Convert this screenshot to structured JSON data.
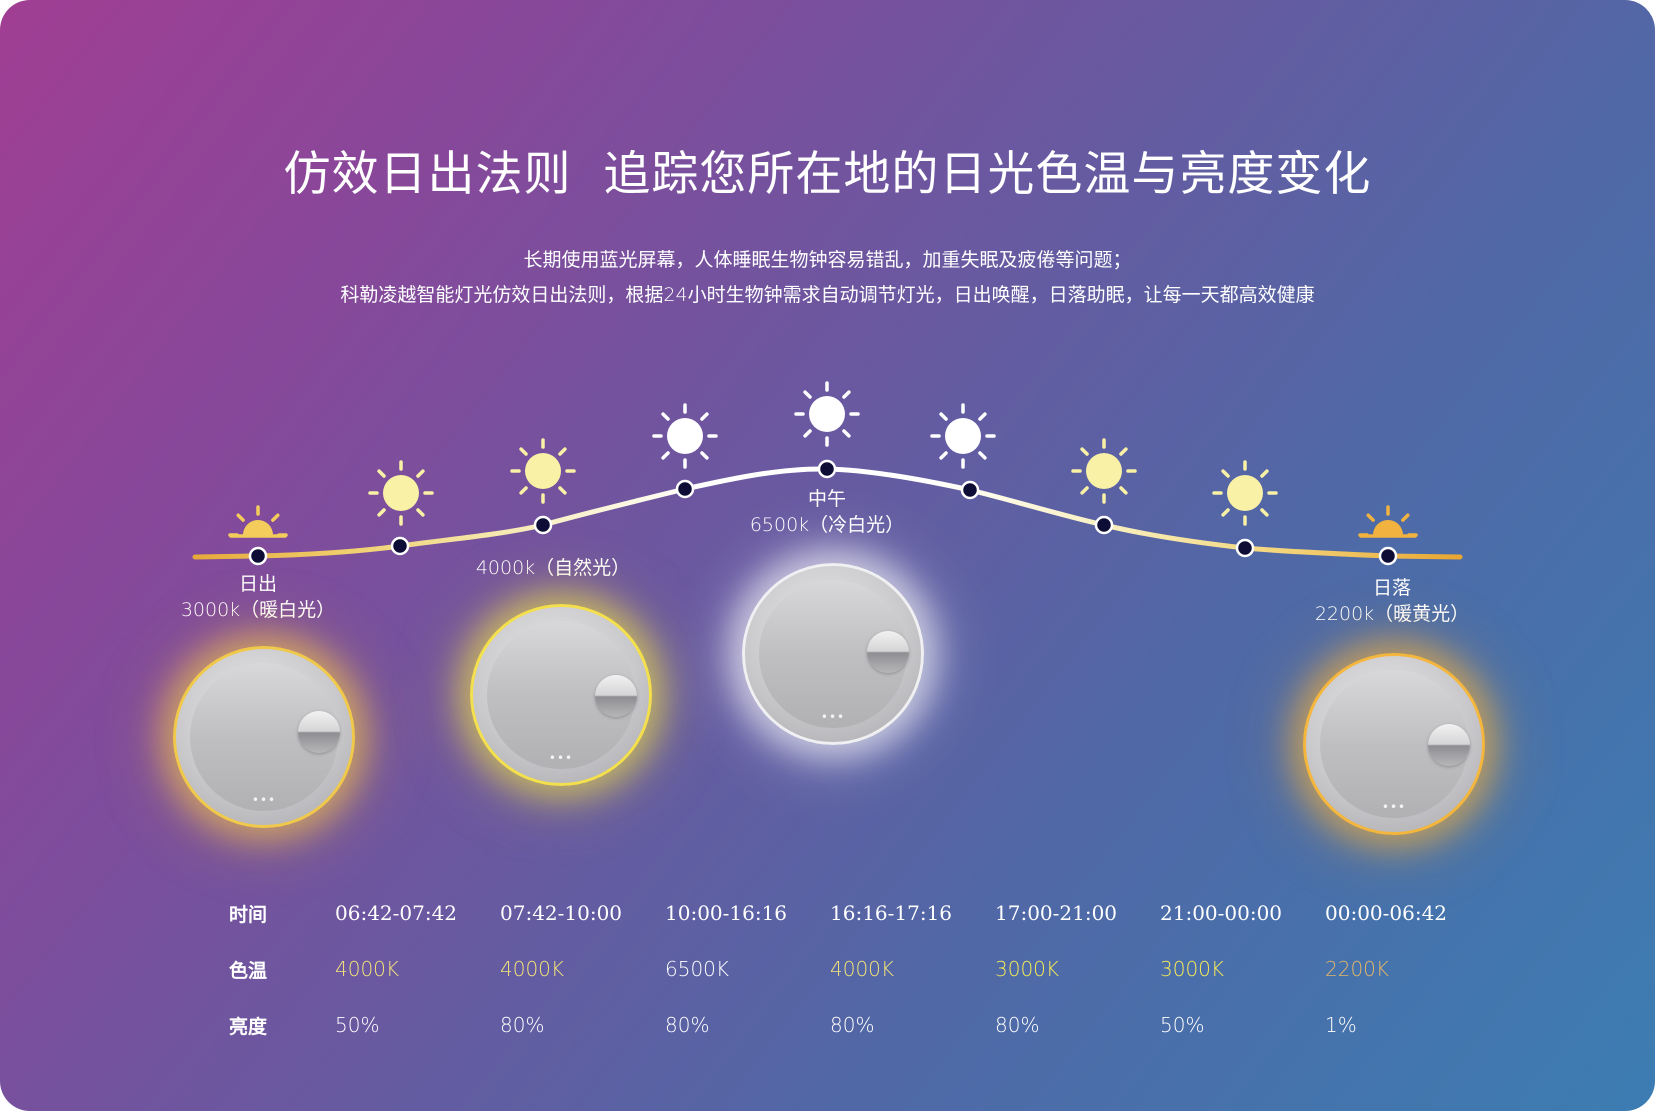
{
  "title": "仿效日出法则  追踪您所在地的日光色温与亮度变化",
  "description": [
    "长期使用蓝光屏幕，人体睡眠生物钟容易错乱，加重失眠及疲倦等问题；",
    "科勒凌越智能灯光仿效日出法则，根据24小时生物钟需求自动调节灯光，日出唤醒，日落助眠，让每一天都高效健康"
  ],
  "curve_labels": {
    "sunrise": {
      "name": "日出",
      "value": "3000k（暖白光）"
    },
    "natural": {
      "value": "4000k（自然光）"
    },
    "noon": {
      "name": "中午",
      "value": "6500k（冷白光）"
    },
    "sunset": {
      "name": "日落",
      "value": "2200k（暖黄光）"
    }
  },
  "colors": {
    "warm_sun": "#f3cc5c",
    "sunset_sun": "#f1b23f",
    "light_sun": "#f9f1a6",
    "white_sun": "#ffffff",
    "node": "#0e0d36",
    "warm_text": "#f3e27a",
    "dim_text": "#e3b66a"
  },
  "schedule": {
    "row_headers": [
      "时间",
      "色温",
      "亮度"
    ],
    "times": [
      "06:42-07:42",
      "07:42-10:00",
      "10:00-16:16",
      "16:16-17:16",
      "17:00-21:00",
      "21:00-00:00",
      "00:00-06:42"
    ],
    "color_temps": [
      "4000K",
      "4000K",
      "6500K",
      "4000K",
      "3000K",
      "3000K",
      "2200K"
    ],
    "brightness": [
      "50%",
      "80%",
      "80%",
      "80%",
      "80%",
      "50%",
      "1%"
    ]
  },
  "mirror_controls": "•••"
}
